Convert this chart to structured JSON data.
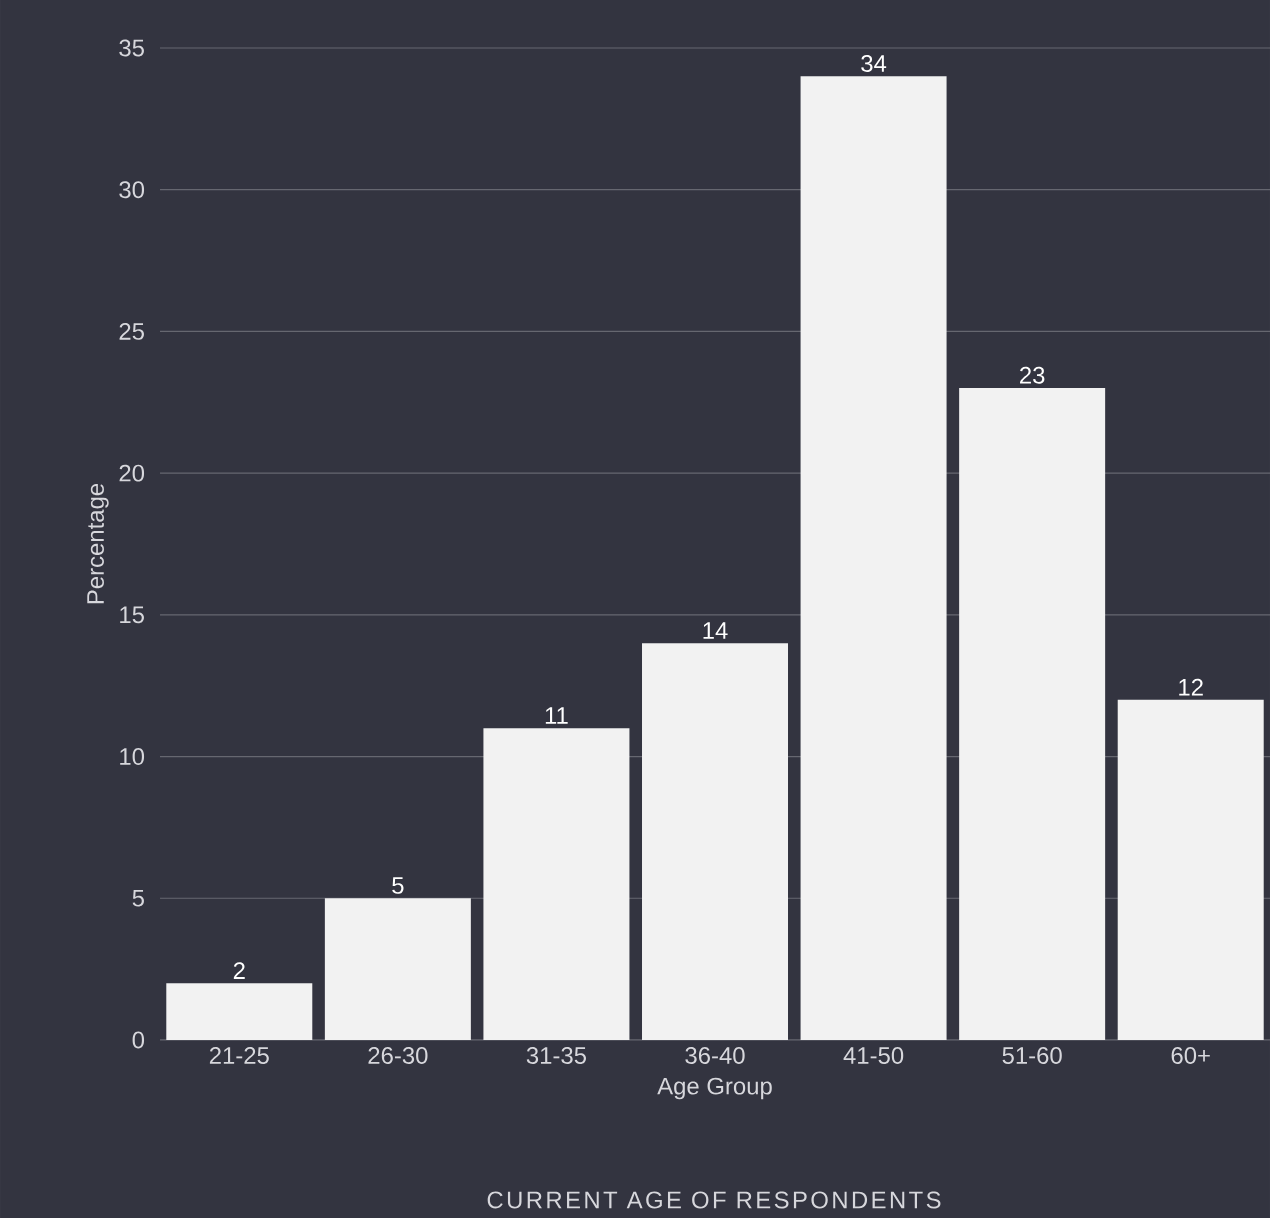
{
  "chart_data": {
    "type": "bar",
    "title": "CURRENT AGE OF RESPONDENTS",
    "xlabel": "Age Group",
    "ylabel": "Percentage",
    "categories": [
      "21-25",
      "26-30",
      "31-35",
      "36-40",
      "41-50",
      "51-60",
      "60+"
    ],
    "values": [
      2,
      5,
      11,
      14,
      34,
      23,
      12
    ],
    "color": "#f2f2f2",
    "ylim": [
      0,
      35
    ],
    "yticks": [
      0,
      5,
      10,
      15,
      20,
      25,
      30,
      35
    ],
    "grid": "y",
    "data_labels": true
  }
}
